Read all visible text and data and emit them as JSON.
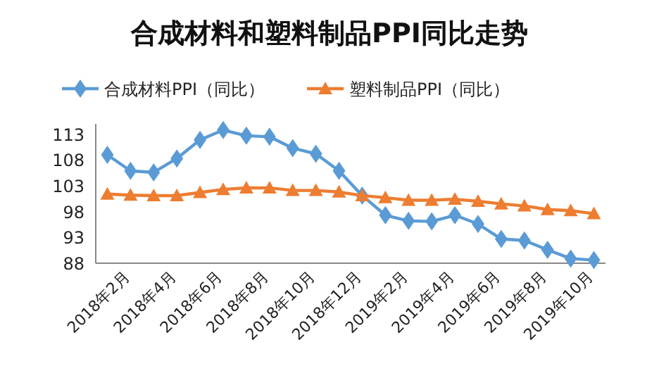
{
  "chart_data": {
    "type": "line",
    "title": "合成材料和塑料制品PPI同比走势",
    "categories": [
      null,
      "2018年2月",
      null,
      "2018年4月",
      null,
      "2018年6月",
      null,
      "2018年8月",
      null,
      "2018年10月",
      null,
      "2018年12月",
      null,
      "2019年2月",
      null,
      "2019年4月",
      null,
      "2019年6月",
      null,
      "2019年8月",
      null,
      "2019年10月"
    ],
    "series": [
      {
        "name": "合成材料PPI（同比）",
        "color": "#5b9bd5",
        "marker": "diamond",
        "values": [
          109.0,
          105.9,
          105.6,
          108.3,
          111.9,
          113.8,
          112.7,
          112.5,
          110.3,
          109.2,
          105.9,
          101.1,
          97.3,
          96.2,
          96.1,
          97.3,
          95.6,
          92.7,
          92.4,
          90.6,
          88.9,
          88.6
        ]
      },
      {
        "name": "塑料制品PPI（同比）",
        "color": "#ed7d31",
        "marker": "triangle",
        "values": [
          101.4,
          101.2,
          101.1,
          101.1,
          101.7,
          102.3,
          102.6,
          102.6,
          102.1,
          102.1,
          101.8,
          101.1,
          100.7,
          100.2,
          100.2,
          100.4,
          100.0,
          99.5,
          99.1,
          98.4,
          98.2,
          97.6
        ]
      }
    ],
    "ylim": [
      88,
      115
    ],
    "yticks": [
      88,
      93,
      98,
      103,
      108,
      113
    ],
    "grid": false,
    "legend": "top"
  }
}
